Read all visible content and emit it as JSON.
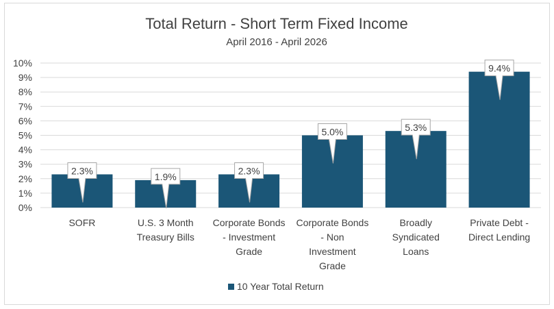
{
  "chart_data": {
    "type": "bar",
    "title": "Total Return - Short Term  Fixed Income",
    "subtitle": "April 2016 - April 2026",
    "categories": [
      [
        "SOFR"
      ],
      [
        "U.S. 3 Month",
        "Treasury Bills"
      ],
      [
        "Corporate Bonds",
        "- Investment",
        "Grade"
      ],
      [
        "Corporate Bonds",
        "- Non",
        "Investment",
        "Grade"
      ],
      [
        "Broadly",
        "Syndicated",
        "Loans"
      ],
      [
        "Private Debt -",
        "Direct Lending"
      ]
    ],
    "series": [
      {
        "name": "10 Year Total Return",
        "values": [
          2.3,
          1.9,
          2.3,
          5.0,
          5.3,
          9.4
        ],
        "data_labels": [
          "2.3%",
          "1.9%",
          "2.3%",
          "5.0%",
          "5.3%",
          "9.4%"
        ]
      }
    ],
    "ylim": [
      0,
      10
    ],
    "yticks": [
      "0%",
      "1%",
      "2%",
      "3%",
      "4%",
      "5%",
      "6%",
      "7%",
      "8%",
      "9%",
      "10%"
    ],
    "grid": true,
    "legend_position": "bottom",
    "bar_color": "#1b5677",
    "gridline_color": "#d9d9d9",
    "text_color": "#404040"
  }
}
